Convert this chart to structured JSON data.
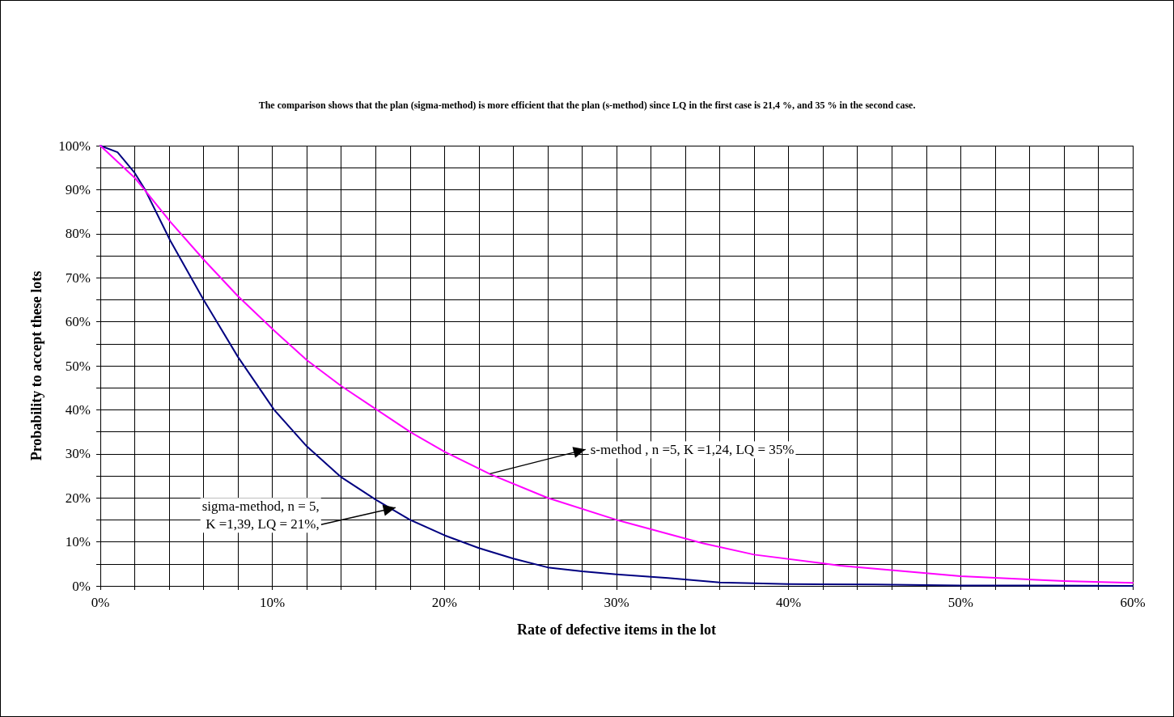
{
  "chart_data": {
    "type": "line",
    "title": "The comparison shows that the plan (sigma-method) is more efficient that the plan (s-method) since LQ in the first case is 21,4 %, and 35 % in the second case.",
    "xlabel": "Rate of defective items in the lot",
    "ylabel": "Probability to accept these lots",
    "series": [
      {
        "color": "#000080",
        "x": [
          0,
          1,
          2,
          2.6,
          4.07,
          6,
          8,
          10.1,
          12,
          14,
          16,
          18,
          20,
          22,
          24,
          26,
          28,
          30,
          33,
          36,
          40,
          45,
          50,
          55,
          60
        ],
        "values": [
          100,
          98.5,
          93.8,
          90,
          78.4,
          65,
          52,
          40,
          31.7,
          24.7,
          19.6,
          15,
          11.5,
          8.6,
          6.2,
          4.2,
          3.3,
          2.6,
          1.8,
          0.8,
          0.4,
          0.3,
          0.1,
          0.1,
          0
        ]
      },
      {
        "color": "#ff00ff",
        "x": [
          0,
          2.05,
          4.07,
          6.08,
          8,
          10.1,
          12,
          14,
          16,
          18,
          20,
          22.7,
          26,
          30,
          35,
          38,
          43,
          50,
          56,
          60
        ],
        "values": [
          100,
          92.5,
          82.7,
          73.8,
          65.8,
          58,
          51.3,
          45.4,
          40.2,
          35,
          30.5,
          25.3,
          20,
          15,
          9.7,
          7.1,
          4.6,
          2.2,
          1.1,
          0.7
        ]
      }
    ],
    "xlim": [
      0,
      60
    ],
    "ylim": [
      0,
      100
    ],
    "xticks": [
      {
        "value": 0,
        "label": "0%"
      },
      {
        "value": 2,
        "label": null
      },
      {
        "value": 4,
        "label": null
      },
      {
        "value": 6,
        "label": null
      },
      {
        "value": 8,
        "label": null
      },
      {
        "value": 10,
        "label": "10%"
      },
      {
        "value": 12,
        "label": null
      },
      {
        "value": 14,
        "label": null
      },
      {
        "value": 16,
        "label": null
      },
      {
        "value": 18,
        "label": null
      },
      {
        "value": 20,
        "label": "20%"
      },
      {
        "value": 22,
        "label": null
      },
      {
        "value": 24,
        "label": null
      },
      {
        "value": 26,
        "label": null
      },
      {
        "value": 28,
        "label": null
      },
      {
        "value": 30,
        "label": "30%"
      },
      {
        "value": 32,
        "label": null
      },
      {
        "value": 34,
        "label": null
      },
      {
        "value": 36,
        "label": null
      },
      {
        "value": 38,
        "label": null
      },
      {
        "value": 40,
        "label": "40%"
      },
      {
        "value": 42,
        "label": null
      },
      {
        "value": 44,
        "label": null
      },
      {
        "value": 46,
        "label": null
      },
      {
        "value": 48,
        "label": null
      },
      {
        "value": 50,
        "label": "50%"
      },
      {
        "value": 52,
        "label": null
      },
      {
        "value": 54,
        "label": null
      },
      {
        "value": 56,
        "label": null
      },
      {
        "value": 58,
        "label": null
      },
      {
        "value": 60,
        "label": "60%"
      }
    ],
    "yticks": [
      {
        "value": 0,
        "label": "0%"
      },
      {
        "value": 5,
        "label": null
      },
      {
        "value": 10,
        "label": "10%"
      },
      {
        "value": 15,
        "label": null
      },
      {
        "value": 20,
        "label": "20%"
      },
      {
        "value": 25,
        "label": null
      },
      {
        "value": 30,
        "label": "30%"
      },
      {
        "value": 35,
        "label": null
      },
      {
        "value": 40,
        "label": "40%"
      },
      {
        "value": 45,
        "label": null
      },
      {
        "value": 50,
        "label": "50%"
      },
      {
        "value": 55,
        "label": null
      },
      {
        "value": 60,
        "label": "60%"
      },
      {
        "value": 65,
        "label": null
      },
      {
        "value": 70,
        "label": "70%"
      },
      {
        "value": 75,
        "label": null
      },
      {
        "value": 80,
        "label": "80%"
      },
      {
        "value": 85,
        "label": null
      },
      {
        "value": 90,
        "label": "90%"
      },
      {
        "value": 95,
        "label": null
      },
      {
        "value": 100,
        "label": "100%"
      }
    ],
    "annotations": [
      {
        "text": "s-method , n =5,  K =1,24,  LQ = 35%",
        "x": 22.7,
        "y": 25.3
      },
      {
        "text": "sigma-method, n = 5,\nK =1,39, LQ = 21%,",
        "x": 17.2,
        "y": 17.6
      }
    ],
    "grid": true,
    "marker": "none",
    "line_style": "solid"
  }
}
